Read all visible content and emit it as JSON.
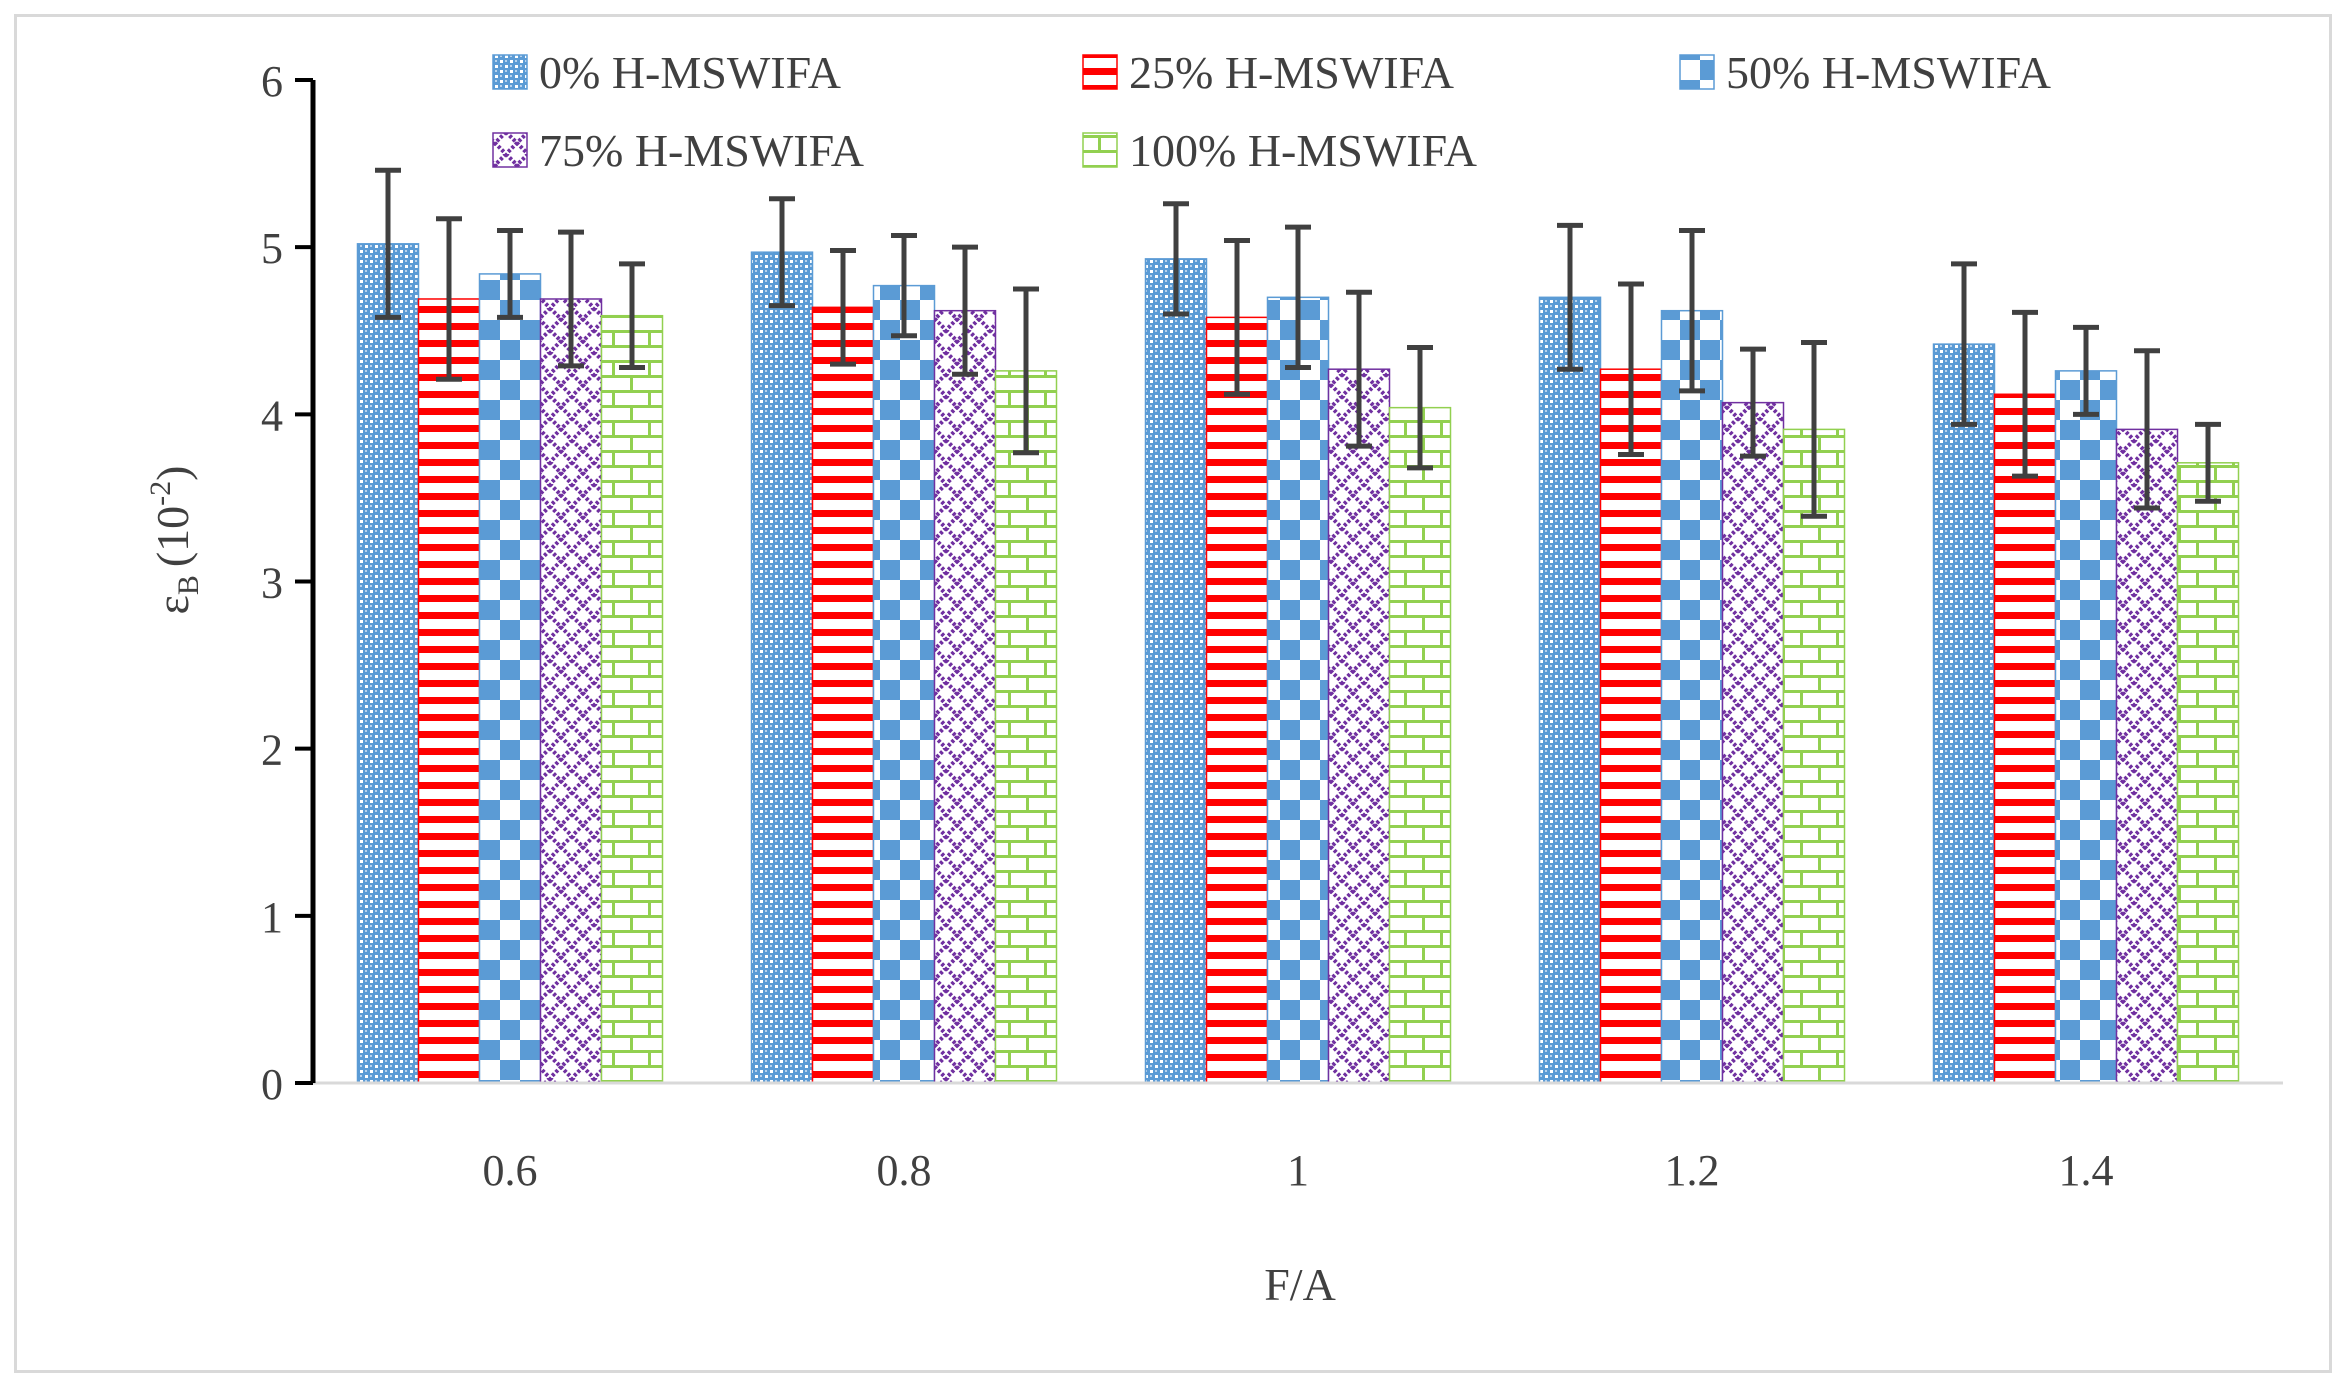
{
  "chart_data": {
    "type": "bar",
    "title": "",
    "xlabel": "F/A",
    "ylabel_symbol": "ε",
    "ylabel_sub": "B",
    "ylabel_unit_base": "(10",
    "ylabel_unit_exp": "-2",
    "ylabel_unit_close": ")",
    "ylim": [
      0,
      6
    ],
    "yticks": [
      "0",
      "1",
      "2",
      "3",
      "4",
      "5",
      "6"
    ],
    "categories": [
      "0.6",
      "0.8",
      "1",
      "1.2",
      "1.4"
    ],
    "legend_position": "top",
    "series": [
      {
        "name": "0% H-MSWIFA",
        "color": "#5b9bd5",
        "pattern": "dots",
        "values": [
          5.02,
          4.97,
          4.93,
          4.7,
          4.42
        ],
        "errors": [
          0.44,
          0.32,
          0.33,
          0.43,
          0.48
        ]
      },
      {
        "name": "25% H-MSWIFA",
        "color": "#ff0000",
        "pattern": "hstripes",
        "values": [
          4.69,
          4.64,
          4.58,
          4.27,
          4.12
        ],
        "errors": [
          0.48,
          0.34,
          0.46,
          0.51,
          0.49
        ]
      },
      {
        "name": "50% H-MSWIFA",
        "color": "#5b9bd5",
        "pattern": "checker",
        "values": [
          4.84,
          4.77,
          4.7,
          4.62,
          4.26
        ],
        "errors": [
          0.26,
          0.3,
          0.42,
          0.48,
          0.26
        ]
      },
      {
        "name": "75% H-MSWIFA",
        "color": "#7030a0",
        "pattern": "lattice",
        "values": [
          4.69,
          4.62,
          4.27,
          4.07,
          3.91
        ],
        "errors": [
          0.4,
          0.38,
          0.46,
          0.32,
          0.47
        ]
      },
      {
        "name": "100% H-MSWIFA",
        "color": "#92d050",
        "pattern": "bricks",
        "values": [
          4.59,
          4.26,
          4.04,
          3.91,
          3.71
        ],
        "errors": [
          0.31,
          0.49,
          0.36,
          0.52,
          0.23
        ]
      }
    ]
  }
}
